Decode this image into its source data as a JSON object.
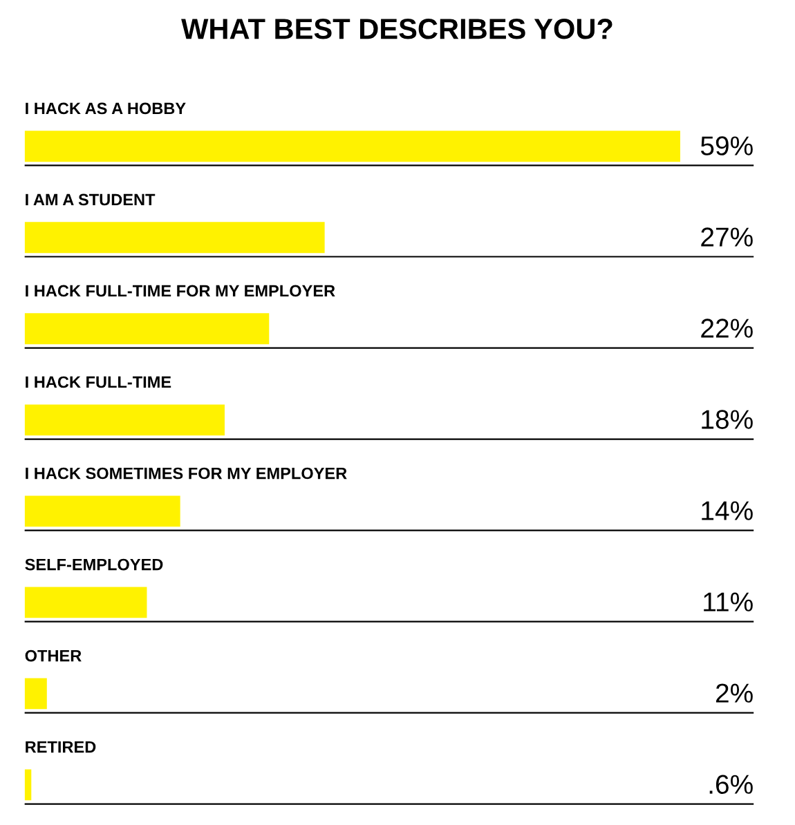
{
  "chart_data": {
    "type": "bar",
    "orientation": "horizontal",
    "title": "WHAT BEST DESCRIBES YOU?",
    "categories": [
      "I HACK AS A HOBBY",
      "I AM A STUDENT",
      "I HACK FULL-TIME FOR MY EMPLOYER",
      "I HACK FULL-TIME",
      "I HACK SOMETIMES FOR MY EMPLOYER",
      "SELF-EMPLOYED",
      "OTHER",
      "RETIRED"
    ],
    "values": [
      59,
      27,
      22,
      18,
      14,
      11,
      2,
      0.6
    ],
    "value_labels": [
      "59%",
      "27%",
      "22%",
      "18%",
      "14%",
      "11%",
      "2%",
      ".6%"
    ],
    "color": "#fff200",
    "grid": "y"
  }
}
